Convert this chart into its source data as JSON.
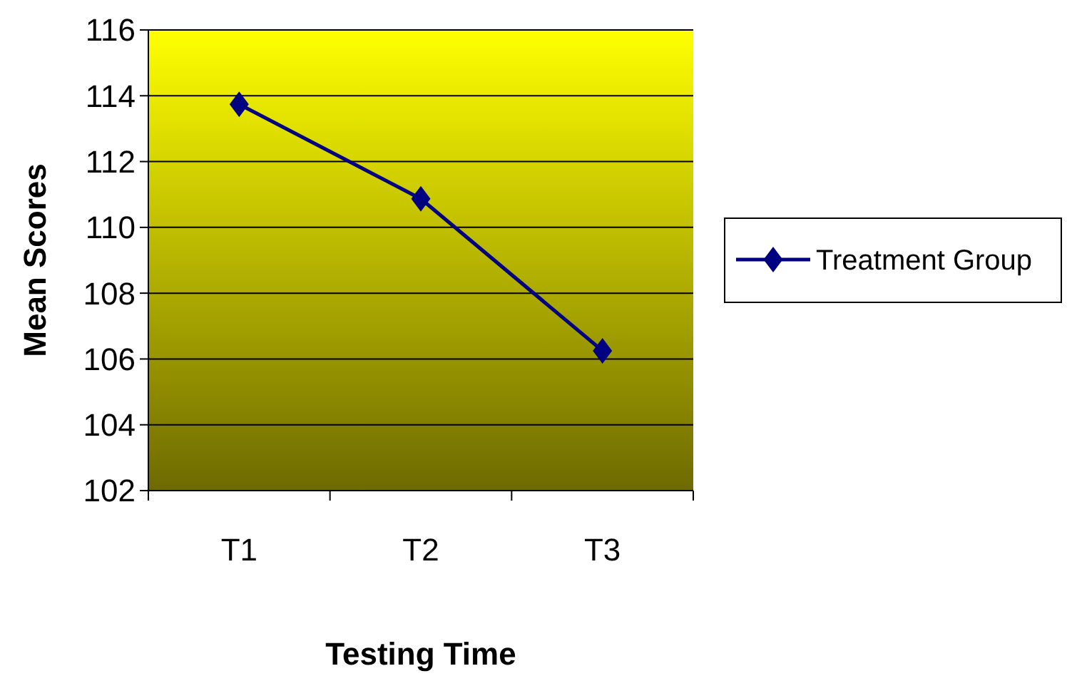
{
  "chart_data": {
    "type": "line",
    "xlabel": "Testing Time",
    "ylabel": "Mean Scores",
    "categories": [
      "T1",
      "T2",
      "T3"
    ],
    "series": [
      {
        "name": "Treatment Group",
        "color": "#000080",
        "values": [
          113.74,
          110.87,
          106.25
        ]
      }
    ],
    "ylim": [
      102,
      116
    ],
    "yticks": [
      102,
      104,
      106,
      108,
      110,
      112,
      114,
      116
    ],
    "grid": "y",
    "legend": "right",
    "marker": "diamond",
    "line_style": "solid"
  }
}
